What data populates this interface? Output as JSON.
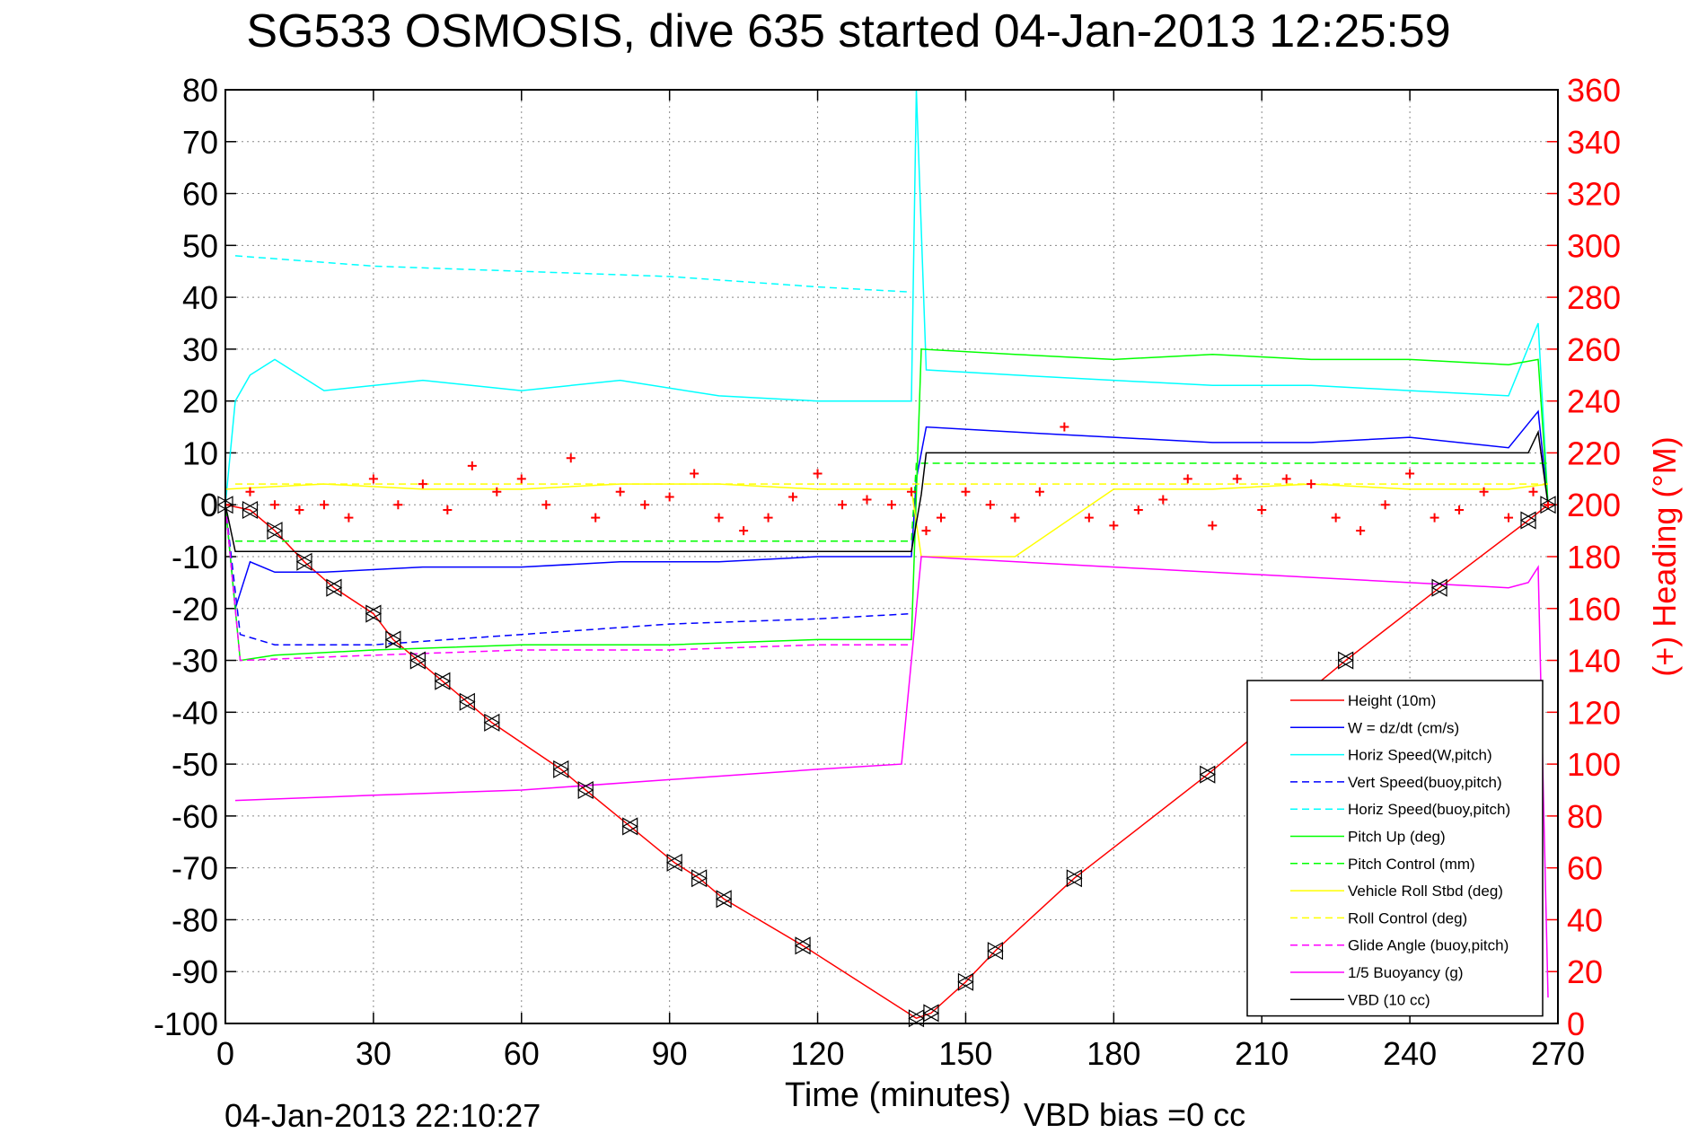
{
  "chart_data": {
    "type": "line",
    "title": "SG533 OSMOSIS, dive 635 started 04-Jan-2013 12:25:59",
    "xlabel": "Time (minutes)",
    "ylabel_right": "(+) Heading (°M)",
    "xlim": [
      0,
      270
    ],
    "ylim": [
      -100,
      80
    ],
    "ylim_right": [
      0,
      360
    ],
    "x_ticks": [
      "0",
      "30",
      "60",
      "90",
      "120",
      "150",
      "180",
      "210",
      "240",
      "270"
    ],
    "y_ticks": [
      "80",
      "70",
      "60",
      "50",
      "40",
      "30",
      "20",
      "10",
      "0",
      "-10",
      "-20",
      "-30",
      "-40",
      "-50",
      "-60",
      "-70",
      "-80",
      "-90",
      "-100"
    ],
    "y_ticks_right": [
      "360",
      "340",
      "320",
      "300",
      "280",
      "260",
      "240",
      "220",
      "200",
      "180",
      "160",
      "140",
      "120",
      "100",
      "80",
      "60",
      "40",
      "20",
      "0"
    ],
    "grid": true,
    "legend_position": "bottom-right",
    "footer_date": "04-Jan-2013 22:10:27",
    "footer_bias": "VBD bias =0 cc",
    "series": [
      {
        "name": "Height (10m)",
        "color": "#ff0000",
        "dash": "solid",
        "x": [
          0,
          5,
          10,
          16,
          22,
          30,
          34,
          39,
          44,
          49,
          54,
          68,
          73,
          82,
          91,
          96,
          101,
          117,
          140,
          143,
          150,
          156,
          172,
          199,
          227,
          246,
          264,
          268
        ],
        "y": [
          0,
          -1,
          -5,
          -11,
          -16,
          -21,
          -26,
          -30,
          -34,
          -38,
          -42,
          -51,
          -55,
          -62,
          -69,
          -72,
          -76,
          -85,
          -99,
          -98,
          -92,
          -86,
          -72,
          -52,
          -30,
          -16,
          -3,
          0
        ]
      },
      {
        "name": "W = dz/dt (cm/s)",
        "color": "#0000ff",
        "dash": "solid",
        "x": [
          0,
          2,
          5,
          10,
          20,
          40,
          60,
          80,
          100,
          120,
          139,
          140,
          142,
          160,
          180,
          200,
          220,
          240,
          260,
          266,
          268
        ],
        "y": [
          0,
          -20,
          -11,
          -13,
          -13,
          -12,
          -12,
          -11,
          -11,
          -10,
          -10,
          5,
          15,
          14,
          13,
          12,
          12,
          13,
          11,
          18,
          0
        ]
      },
      {
        "name": "Horiz Speed(W,pitch)",
        "color": "#00ffff",
        "dash": "solid",
        "x": [
          0,
          2,
          5,
          10,
          20,
          40,
          60,
          80,
          100,
          120,
          139,
          140,
          142,
          160,
          180,
          200,
          220,
          240,
          260,
          266,
          268
        ],
        "y": [
          0,
          20,
          25,
          28,
          22,
          24,
          22,
          24,
          21,
          20,
          20,
          80,
          26,
          25,
          24,
          23,
          23,
          22,
          21,
          35,
          0
        ]
      },
      {
        "name": "Vert Speed(buoy,pitch)",
        "color": "#0000ff",
        "dash": "dashed",
        "x": [
          0,
          3,
          10,
          30,
          60,
          90,
          120,
          139
        ],
        "y": [
          0,
          -25,
          -27,
          -27,
          -25,
          -23,
          -22,
          -21
        ]
      },
      {
        "name": "Horiz Speed(buoy,pitch)",
        "color": "#00ffff",
        "dash": "dashed",
        "x": [
          2,
          30,
          60,
          90,
          120,
          139
        ],
        "y": [
          48,
          46,
          45,
          44,
          42,
          41
        ]
      },
      {
        "name": "Pitch Up (deg)",
        "color": "#00ff00",
        "dash": "solid",
        "x": [
          0,
          3,
          10,
          30,
          60,
          90,
          120,
          139,
          141,
          160,
          180,
          200,
          220,
          240,
          260,
          266,
          268
        ],
        "y": [
          0,
          -30,
          -29,
          -28,
          -27,
          -27,
          -26,
          -26,
          30,
          29,
          28,
          29,
          28,
          28,
          27,
          28,
          0
        ]
      },
      {
        "name": "Pitch Control (mm)",
        "color": "#00ff00",
        "dash": "dashed",
        "x": [
          2,
          139,
          140,
          268
        ],
        "y": [
          -7,
          -7,
          8,
          8
        ]
      },
      {
        "name": "Vehicle Roll Stbd (deg)",
        "color": "#ffff00",
        "dash": "solid",
        "x": [
          0,
          20,
          40,
          60,
          80,
          100,
          120,
          139,
          141,
          160,
          180,
          200,
          220,
          240,
          260,
          268
        ],
        "y": [
          3,
          4,
          3,
          3,
          4,
          4,
          3,
          3,
          -10,
          -10,
          3,
          3,
          4,
          3,
          3,
          4
        ]
      },
      {
        "name": "Roll Control (deg)",
        "color": "#ffff00",
        "dash": "dashed",
        "x": [
          2,
          139,
          140,
          268
        ],
        "y": [
          4,
          4,
          4,
          4
        ]
      },
      {
        "name": "Glide Angle (buoy,pitch)",
        "color": "#ff00ff",
        "dash": "dashed",
        "x": [
          0,
          3,
          30,
          60,
          90,
          120,
          139
        ],
        "y": [
          0,
          -30,
          -29,
          -28,
          -28,
          -27,
          -27
        ]
      },
      {
        "name": "1/5 Buoyancy (g)",
        "color": "#ff00ff",
        "dash": "solid",
        "x": [
          2,
          30,
          60,
          90,
          120,
          137,
          141,
          180,
          220,
          260,
          264,
          266,
          268
        ],
        "y": [
          -57,
          -56,
          -55,
          -53,
          -51,
          -50,
          -10,
          -12,
          -14,
          -16,
          -15,
          -12,
          -95
        ]
      },
      {
        "name": "VBD (10 cc)",
        "color": "#000000",
        "dash": "solid",
        "x": [
          0,
          2,
          139,
          141,
          142,
          264,
          266,
          268
        ],
        "y": [
          0,
          -9,
          -9,
          2,
          10,
          10,
          14,
          0
        ]
      }
    ],
    "heading": {
      "name": "Heading",
      "color": "#ff0000",
      "marker": "+",
      "axis": "right",
      "x": [
        0,
        5,
        10,
        15,
        20,
        25,
        30,
        35,
        40,
        45,
        50,
        55,
        60,
        65,
        70,
        75,
        80,
        85,
        90,
        95,
        100,
        105,
        110,
        115,
        120,
        125,
        130,
        135,
        139,
        142,
        145,
        150,
        155,
        160,
        165,
        170,
        175,
        180,
        185,
        190,
        195,
        200,
        205,
        210,
        215,
        220,
        225,
        230,
        235,
        240,
        245,
        250,
        255,
        260,
        265,
        268
      ],
      "y": [
        200,
        205,
        200,
        198,
        200,
        195,
        210,
        200,
        208,
        198,
        215,
        205,
        210,
        200,
        218,
        195,
        205,
        200,
        203,
        212,
        195,
        190,
        195,
        203,
        212,
        200,
        202,
        200,
        205,
        190,
        195,
        205,
        200,
        195,
        205,
        230,
        195,
        192,
        198,
        202,
        210,
        192,
        210,
        198,
        210,
        208,
        195,
        190,
        200,
        212,
        195,
        198,
        205,
        195,
        205,
        200
      ]
    }
  }
}
